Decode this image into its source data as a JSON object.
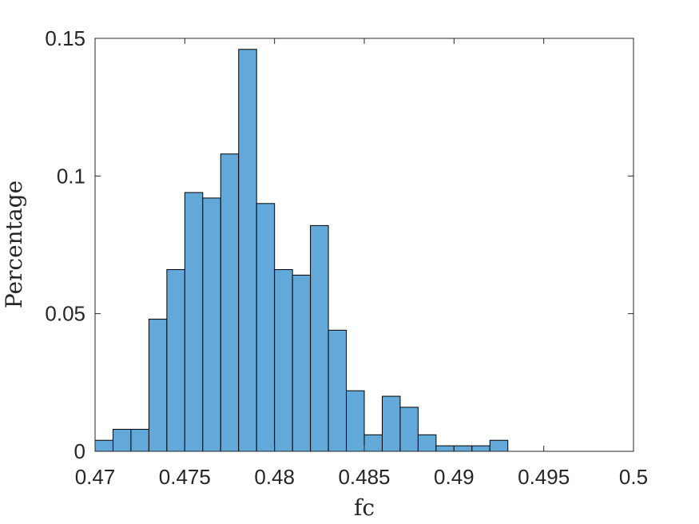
{
  "chart_data": {
    "type": "bar",
    "subtype": "histogram",
    "title": "",
    "xlabel": "fc",
    "ylabel": "Percentage",
    "xlim": [
      0.47,
      0.5
    ],
    "ylim": [
      0,
      0.15
    ],
    "grid": false,
    "bin_width": 0.001,
    "bin_edges_start": 0.47,
    "bar_color": "#62A9DA",
    "edge_color": "#000000",
    "x_ticks": [
      {
        "value": 0.47,
        "label": "0.47"
      },
      {
        "value": 0.475,
        "label": "0.475"
      },
      {
        "value": 0.48,
        "label": "0.48"
      },
      {
        "value": 0.485,
        "label": "0.485"
      },
      {
        "value": 0.49,
        "label": "0.49"
      },
      {
        "value": 0.495,
        "label": "0.495"
      },
      {
        "value": 0.5,
        "label": "0.5"
      }
    ],
    "y_ticks": [
      {
        "value": 0,
        "label": "0"
      },
      {
        "value": 0.05,
        "label": "0.05"
      },
      {
        "value": 0.1,
        "label": "0.1"
      },
      {
        "value": 0.15,
        "label": "0.15"
      }
    ],
    "values": [
      0.004,
      0.008,
      0.008,
      0.048,
      0.066,
      0.094,
      0.092,
      0.108,
      0.146,
      0.09,
      0.066,
      0.064,
      0.082,
      0.044,
      0.022,
      0.006,
      0.02,
      0.016,
      0.006,
      0.002,
      0.002,
      0.002,
      0.004
    ]
  }
}
